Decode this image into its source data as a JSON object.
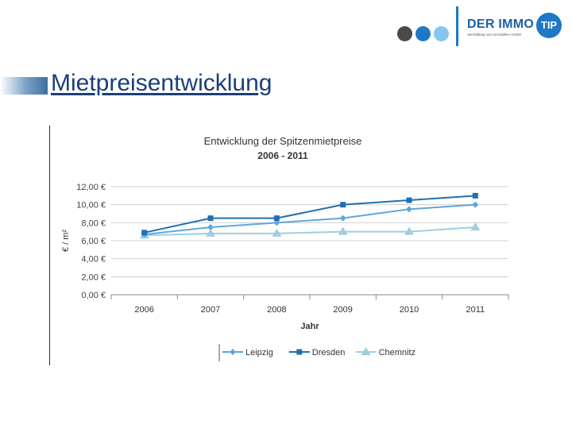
{
  "logo": {
    "brand": "DER IMMO",
    "badge": "TIP",
    "tagline": "Vermittlung von Immobilien GmbH"
  },
  "page_title": "Mietpreisentwicklung",
  "chart_data": {
    "type": "line",
    "title": "Entwicklung der Spitzenmietpreise",
    "subtitle": "2006 - 2011",
    "xlabel": "Jahr",
    "ylabel": "€ / m²",
    "categories": [
      "2006",
      "2007",
      "2008",
      "2009",
      "2010",
      "2011"
    ],
    "yticks": [
      "0,00 €",
      "2,00 €",
      "4,00 €",
      "6,00 €",
      "8,00 €",
      "10,00 €",
      "12,00 €"
    ],
    "ylim": [
      0,
      12
    ],
    "legend_position": "bottom",
    "series": [
      {
        "name": "Leipzig",
        "values": [
          6.7,
          7.5,
          8.0,
          8.5,
          9.5,
          10.0
        ],
        "color": "#5fa6dc",
        "marker": "diamond"
      },
      {
        "name": "Dresden",
        "values": [
          6.9,
          8.5,
          8.5,
          10.0,
          10.5,
          11.0
        ],
        "color": "#1f6fb2",
        "marker": "square"
      },
      {
        "name": "Chemnitz",
        "values": [
          6.6,
          6.8,
          6.8,
          7.0,
          7.0,
          7.5
        ],
        "color": "#9ccfdf",
        "marker": "triangle"
      }
    ]
  }
}
